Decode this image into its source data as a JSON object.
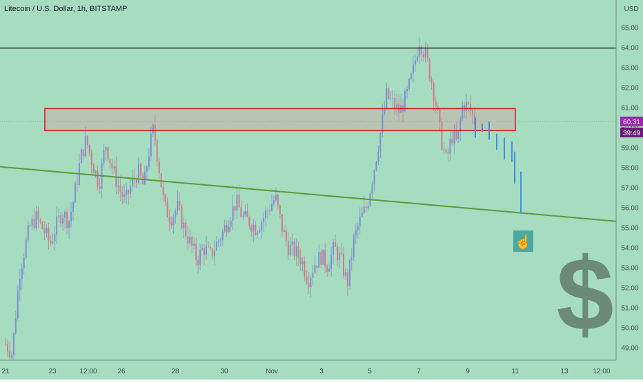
{
  "header": {
    "symbol_title": "Litecoin / U.S. Dollar, 1h, BITSTAMP",
    "currency": "USD"
  },
  "colors": {
    "background": "#a6dcc0",
    "candle_up": "#7e8fd0",
    "candle_down": "#d07a8a",
    "resistance_line": "#000000",
    "trendline": "#5a9a3a",
    "zone_border": "#d0141c",
    "zone_fill": "#bdbdb0",
    "projection": "#3d8fe0",
    "price_badge": "#9c27b0",
    "dollar_sign": "#6b8b78",
    "hand_box": "#4aa9a3"
  },
  "chart_data": {
    "type": "candlestick",
    "symbol": "Litecoin / U.S. Dollar",
    "interval": "1h",
    "exchange": "BITSTAMP",
    "y_axis": {
      "unit": "USD",
      "range": [
        48.6,
        65.4
      ],
      "ticks": [
        49.0,
        50.0,
        51.0,
        52.0,
        53.0,
        54.0,
        55.0,
        56.0,
        57.0,
        58.0,
        59.0,
        60.0,
        61.0,
        62.0,
        63.0,
        64.0,
        65.0
      ],
      "tick_labels": [
        "49.00",
        "50.00",
        "51.00",
        "52.00",
        "53.00",
        "54.00",
        "55.00",
        "56.00",
        "57.00",
        "58.00",
        "59.00",
        "60.00",
        "61.00",
        "62.00",
        "63.00",
        "64.00",
        "65.00"
      ]
    },
    "x_axis": {
      "tick_labels": [
        "21",
        "23",
        "12:00",
        "26",
        "28",
        "30",
        "Nov",
        "3",
        "5",
        "7",
        "9",
        "11",
        "13",
        "12:00"
      ]
    },
    "price_path": [
      {
        "t": 0.0,
        "p": 49.2
      },
      {
        "t": 0.6,
        "p": 48.7
      },
      {
        "t": 1.3,
        "p": 52.8
      },
      {
        "t": 2.2,
        "p": 55.0
      },
      {
        "t": 2.8,
        "p": 55.5
      },
      {
        "t": 3.5,
        "p": 54.9
      },
      {
        "t": 4.1,
        "p": 54.2
      },
      {
        "t": 4.6,
        "p": 55.0
      },
      {
        "t": 5.2,
        "p": 55.8
      },
      {
        "t": 5.8,
        "p": 55.3
      },
      {
        "t": 6.3,
        "p": 56.5
      },
      {
        "t": 6.9,
        "p": 58.5
      },
      {
        "t": 7.4,
        "p": 59.4
      },
      {
        "t": 8.0,
        "p": 58.2
      },
      {
        "t": 8.6,
        "p": 57.2
      },
      {
        "t": 9.2,
        "p": 59.2
      },
      {
        "t": 9.8,
        "p": 58.0
      },
      {
        "t": 10.4,
        "p": 57.0
      },
      {
        "t": 11.0,
        "p": 56.3
      },
      {
        "t": 11.6,
        "p": 57.2
      },
      {
        "t": 12.2,
        "p": 57.8
      },
      {
        "t": 12.7,
        "p": 57.0
      },
      {
        "t": 13.1,
        "p": 58.6
      },
      {
        "t": 13.6,
        "p": 60.0
      },
      {
        "t": 14.1,
        "p": 58.0
      },
      {
        "t": 14.6,
        "p": 56.0
      },
      {
        "t": 15.2,
        "p": 55.5
      },
      {
        "t": 15.8,
        "p": 56.0
      },
      {
        "t": 16.4,
        "p": 55.0
      },
      {
        "t": 17.0,
        "p": 54.2
      },
      {
        "t": 17.6,
        "p": 53.4
      },
      {
        "t": 18.2,
        "p": 54.0
      },
      {
        "t": 18.8,
        "p": 53.6
      },
      {
        "t": 19.4,
        "p": 54.2
      },
      {
        "t": 20.0,
        "p": 54.8
      },
      {
        "t": 20.6,
        "p": 55.6
      },
      {
        "t": 21.2,
        "p": 56.3
      },
      {
        "t": 21.8,
        "p": 55.5
      },
      {
        "t": 22.4,
        "p": 55.3
      },
      {
        "t": 23.0,
        "p": 55.0
      },
      {
        "t": 23.6,
        "p": 55.4
      },
      {
        "t": 24.2,
        "p": 56.0
      },
      {
        "t": 24.8,
        "p": 56.5
      },
      {
        "t": 25.4,
        "p": 55.0
      },
      {
        "t": 26.0,
        "p": 54.0
      },
      {
        "t": 26.6,
        "p": 53.8
      },
      {
        "t": 27.2,
        "p": 53.4
      },
      {
        "t": 27.8,
        "p": 52.4
      },
      {
        "t": 28.4,
        "p": 53.2
      },
      {
        "t": 29.0,
        "p": 53.6
      },
      {
        "t": 29.6,
        "p": 53.1
      },
      {
        "t": 30.2,
        "p": 54.0
      },
      {
        "t": 30.8,
        "p": 53.4
      },
      {
        "t": 31.4,
        "p": 52.2
      },
      {
        "t": 32.0,
        "p": 54.4
      },
      {
        "t": 32.6,
        "p": 55.4
      },
      {
        "t": 33.2,
        "p": 56.1
      },
      {
        "t": 33.8,
        "p": 57.8
      },
      {
        "t": 34.4,
        "p": 59.6
      },
      {
        "t": 35.0,
        "p": 61.6
      },
      {
        "t": 35.6,
        "p": 61.2
      },
      {
        "t": 36.2,
        "p": 60.8
      },
      {
        "t": 36.8,
        "p": 61.5
      },
      {
        "t": 37.4,
        "p": 62.7
      },
      {
        "t": 38.0,
        "p": 64.4
      },
      {
        "t": 38.6,
        "p": 63.6
      },
      {
        "t": 39.2,
        "p": 62.2
      },
      {
        "t": 39.6,
        "p": 61.0
      },
      {
        "t": 40.0,
        "p": 59.5
      },
      {
        "t": 40.5,
        "p": 58.3
      },
      {
        "t": 41.0,
        "p": 59.6
      },
      {
        "t": 41.5,
        "p": 59.2
      },
      {
        "t": 42.0,
        "p": 61.2
      },
      {
        "t": 42.6,
        "p": 61.0
      },
      {
        "t": 43.1,
        "p": 60.31
      }
    ],
    "projection_segments": [
      {
        "from": 60.5,
        "to": 59.5
      },
      {
        "from": 60.2,
        "to": 59.8
      },
      {
        "from": 60.3,
        "to": 59.4
      },
      {
        "from": 59.7,
        "to": 58.9
      },
      {
        "from": 59.5,
        "to": 58.4
      },
      {
        "from": 59.3,
        "to": 58.3
      },
      {
        "from": 58.8,
        "to": 57.2
      },
      {
        "from": 57.8,
        "to": 55.7
      }
    ],
    "annotations": {
      "resistance_line_price": 63.98,
      "zone": {
        "top": 60.95,
        "bottom": 59.85
      },
      "trendline": {
        "start_price": 58.05,
        "end_price": 55.2
      },
      "current_price": "60.31",
      "countdown": "39:49"
    },
    "grid": false
  }
}
